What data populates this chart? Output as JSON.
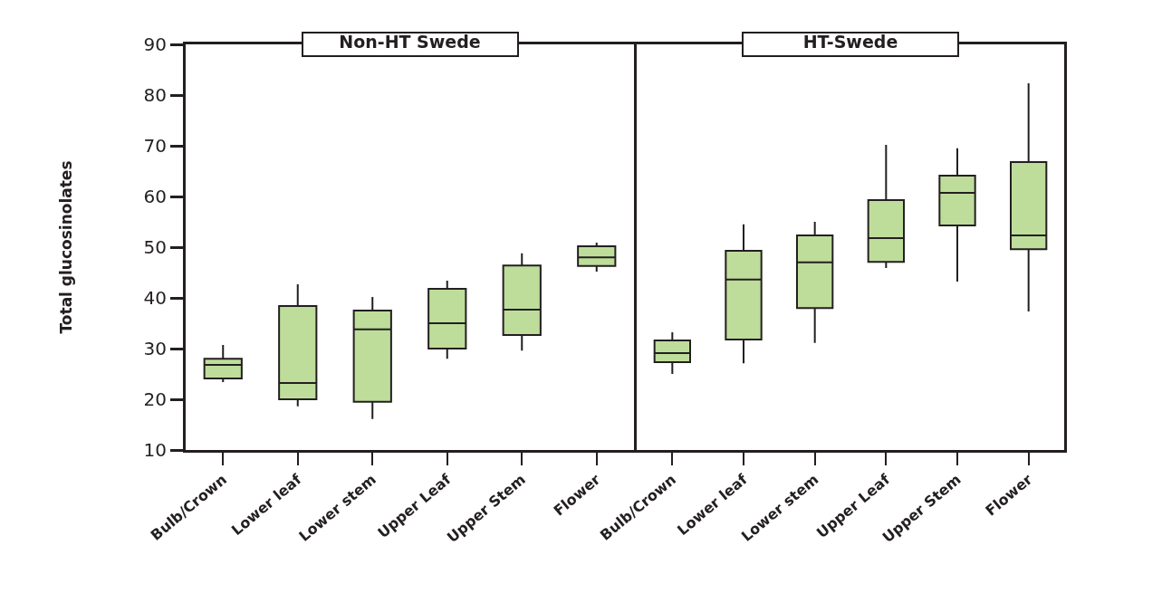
{
  "chart_data": [
    {
      "type": "box",
      "title": "Non-HT Swede",
      "ylabel": "Total glucosinolates",
      "categories": [
        "Bulb/Crown",
        "Lower leaf",
        "Lower stem",
        "Upper Leaf",
        "Upper Stem",
        "Flower"
      ],
      "color": "#bedd9b",
      "ylim": [
        10,
        90
      ],
      "yticks": [
        10,
        20,
        30,
        40,
        50,
        60,
        70,
        80,
        90
      ],
      "grid": false,
      "legend": false,
      "boxes": [
        {
          "low": 23.4,
          "q1": 24.1,
          "median": 26.8,
          "q3": 28.0,
          "high": 30.7
        },
        {
          "low": 18.6,
          "q1": 20.0,
          "median": 23.2,
          "q3": 38.4,
          "high": 42.7
        },
        {
          "low": 16.1,
          "q1": 19.5,
          "median": 33.8,
          "q3": 37.5,
          "high": 40.2
        },
        {
          "low": 28.0,
          "q1": 30.0,
          "median": 35.0,
          "q3": 41.8,
          "high": 43.4
        },
        {
          "low": 29.6,
          "q1": 32.7,
          "median": 37.7,
          "q3": 46.4,
          "high": 48.8
        },
        {
          "low": 45.2,
          "q1": 46.3,
          "median": 48.0,
          "q3": 50.2,
          "high": 50.9
        }
      ]
    },
    {
      "type": "box",
      "title": "HT-Swede",
      "categories": [
        "Bulb/Crown",
        "Lower leaf",
        "Lower stem",
        "Upper Leaf",
        "Upper Stem",
        "Flower"
      ],
      "color": "#bedd9b",
      "ylim": [
        10,
        90
      ],
      "tick_labels": "x",
      "grid": false,
      "legend": false,
      "boxes": [
        {
          "low": 25.0,
          "q1": 27.3,
          "median": 29.1,
          "q3": 31.6,
          "high": 33.2
        },
        {
          "low": 27.1,
          "q1": 31.8,
          "median": 43.6,
          "q3": 49.3,
          "high": 54.5
        },
        {
          "low": 31.1,
          "q1": 38.0,
          "median": 47.0,
          "q3": 52.3,
          "high": 55.0
        },
        {
          "low": 45.9,
          "q1": 47.1,
          "median": 51.8,
          "q3": 59.3,
          "high": 70.2
        },
        {
          "low": 43.2,
          "q1": 54.3,
          "median": 60.7,
          "q3": 64.1,
          "high": 69.5
        },
        {
          "low": 37.3,
          "q1": 49.6,
          "median": 52.3,
          "q3": 66.8,
          "high": 82.3
        }
      ]
    }
  ]
}
